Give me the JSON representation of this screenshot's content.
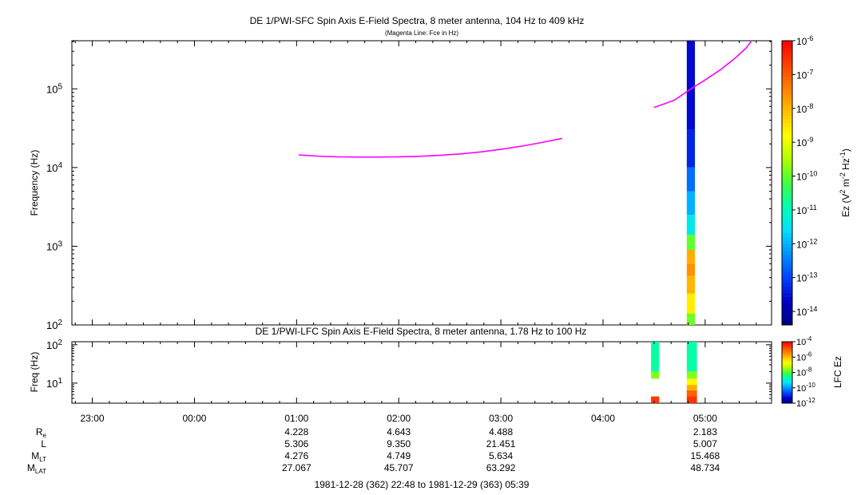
{
  "colors": {
    "fce_line": "#ff00ff",
    "colormap": [
      "#000080",
      "#0000c8",
      "#0040ff",
      "#0090ff",
      "#00e0ff",
      "#00ffb0",
      "#40ff40",
      "#b0ff00",
      "#ffff00",
      "#ffc000",
      "#ff8000",
      "#ff4000",
      "#ff0000"
    ]
  },
  "chart_data": [
    {
      "type": "heatmap",
      "title": "DE 1/PWI-SFC  Spin Axis E-Field Spectra, 8 meter antenna, 104 Hz to 409 kHz",
      "subtitle": "(Magenta Line: Fce in Hz)",
      "ylabel": "Frequency (Hz)",
      "yscale": "log",
      "ylim": [
        100,
        409000
      ],
      "yticks": [
        100,
        1000,
        10000,
        100000
      ],
      "ytick_labels": [
        {
          "base": "10",
          "exp": "2"
        },
        {
          "base": "10",
          "exp": "3"
        },
        {
          "base": "10",
          "exp": "4"
        },
        {
          "base": "10",
          "exp": "5"
        }
      ],
      "xlim_hours": [
        22.8,
        29.65
      ],
      "colorbar": {
        "label": "Ez (V2 m-2 Hz-1)",
        "label_parts": [
          {
            "t": "Ez (V",
            "sup": false
          },
          {
            "t": "2",
            "sup": true
          },
          {
            "t": " m",
            "sup": false
          },
          {
            "t": "-2",
            "sup": true
          },
          {
            "t": " Hz",
            "sup": false
          },
          {
            "t": "-1",
            "sup": true
          },
          {
            "t": ")",
            "sup": false
          }
        ],
        "log_range": [
          -14.4,
          -6
        ],
        "ticks": [
          {
            "base": "10",
            "exp": "-6",
            "v": -6
          },
          {
            "base": "10",
            "exp": "-7",
            "v": -7
          },
          {
            "base": "10",
            "exp": "-8",
            "v": -8
          },
          {
            "base": "10",
            "exp": "-9",
            "v": -9
          },
          {
            "base": "10",
            "exp": "-10",
            "v": -10
          },
          {
            "base": "10",
            "exp": "-11",
            "v": -11
          },
          {
            "base": "10",
            "exp": "-12",
            "v": -12
          },
          {
            "base": "10",
            "exp": "-13",
            "v": -13
          },
          {
            "base": "10",
            "exp": "-14",
            "v": -14
          }
        ]
      },
      "fce_line": {
        "segment_1": {
          "hours": [
            25.02,
            25.2,
            25.4,
            25.6,
            25.8,
            26.0,
            26.2,
            26.4,
            26.6,
            26.8,
            27.0,
            27.2,
            27.4,
            27.6
          ],
          "freq_hz": [
            14500,
            14000,
            13700,
            13600,
            13600,
            13700,
            13900,
            14300,
            14900,
            15800,
            17000,
            18700,
            20800,
            23500
          ]
        },
        "segment_2": {
          "hours": [
            28.5,
            28.7,
            28.85,
            29.0,
            29.15,
            29.3,
            29.4,
            29.45
          ],
          "freq_hz": [
            58000,
            72000,
            98000,
            130000,
            175000,
            250000,
            330000,
            400000
          ]
        }
      },
      "spectra": [
        {
          "hours_start": 28.82,
          "hours_end": 28.9,
          "bins": [
            {
              "f_lo": 100,
              "f_hi": 140,
              "log_ez": -9.9
            },
            {
              "f_lo": 140,
              "f_hi": 250,
              "log_ez": -8.6
            },
            {
              "f_lo": 250,
              "f_hi": 420,
              "log_ez": -8.0
            },
            {
              "f_lo": 420,
              "f_hi": 600,
              "log_ez": -7.6
            },
            {
              "f_lo": 600,
              "f_hi": 900,
              "log_ez": -7.9
            },
            {
              "f_lo": 900,
              "f_hi": 1400,
              "log_ez": -10.0
            },
            {
              "f_lo": 1400,
              "f_hi": 2500,
              "log_ez": -11.4
            },
            {
              "f_lo": 2500,
              "f_hi": 5000,
              "log_ez": -12.0
            },
            {
              "f_lo": 5000,
              "f_hi": 10000,
              "log_ez": -12.6
            },
            {
              "f_lo": 10000,
              "f_hi": 30000,
              "log_ez": -13.3
            },
            {
              "f_lo": 30000,
              "f_hi": 409000,
              "log_ez": -13.6
            }
          ]
        }
      ]
    },
    {
      "type": "heatmap",
      "title": "DE 1/PWI-LFC  Spin Axis E-Field Spectra, 8 meter antenna, 1.78 Hz to 100 Hz",
      "ylabel": "Freq (Hz)",
      "yscale": "log",
      "ylim": [
        3,
        120
      ],
      "yticks": [
        10,
        100
      ],
      "ytick_labels": [
        {
          "base": "10",
          "exp": "1"
        },
        {
          "base": "10",
          "exp": "2"
        }
      ],
      "colorbar": {
        "label": "LFC Ez",
        "log_range": [
          -12,
          -4
        ],
        "ticks": [
          {
            "base": "10",
            "exp": "-4",
            "v": -4
          },
          {
            "base": "10",
            "exp": "-6",
            "v": -6
          },
          {
            "base": "10",
            "exp": "-8",
            "v": -8
          },
          {
            "base": "10",
            "exp": "-10",
            "v": -10
          },
          {
            "base": "10",
            "exp": "-12",
            "v": -12
          }
        ]
      },
      "spectra": [
        {
          "hours_start": 28.47,
          "hours_end": 28.55,
          "bins": [
            {
              "f_lo": 3,
              "f_hi": 4.5,
              "log_ez": -4.6
            },
            {
              "f_lo": 13,
              "f_hi": 20,
              "log_ez": -7.6
            },
            {
              "f_lo": 20,
              "f_hi": 120,
              "log_ez": -8.6
            }
          ]
        },
        {
          "hours_start": 28.82,
          "hours_end": 28.92,
          "bins": [
            {
              "f_lo": 3,
              "f_hi": 4.5,
              "log_ez": -4.5
            },
            {
              "f_lo": 4.5,
              "f_hi": 6.5,
              "log_ez": -5.0
            },
            {
              "f_lo": 6.5,
              "f_hi": 9,
              "log_ez": -5.8
            },
            {
              "f_lo": 9,
              "f_hi": 13,
              "log_ez": -6.6
            },
            {
              "f_lo": 13,
              "f_hi": 20,
              "log_ez": -7.6
            },
            {
              "f_lo": 20,
              "f_hi": 120,
              "log_ez": -8.6
            }
          ]
        }
      ]
    }
  ],
  "time_axis": {
    "ticks": [
      {
        "h": 23,
        "label": "23:00"
      },
      {
        "h": 24,
        "label": "00:00"
      },
      {
        "h": 25,
        "label": "01:00"
      },
      {
        "h": 26,
        "label": "02:00"
      },
      {
        "h": 27,
        "label": "03:00"
      },
      {
        "h": 28,
        "label": "04:00"
      },
      {
        "h": 29,
        "label": "05:00"
      }
    ],
    "range_label": "1981-12-28 (362) 22:48 to 1981-12-29 (363) 05:39"
  },
  "ephemeris": {
    "rows": [
      {
        "base": "R",
        "sub": "e",
        "values": {
          "25": "4.228",
          "26": "4.643",
          "27": "4.488",
          "29": "2.183"
        }
      },
      {
        "base": "L",
        "sub": "",
        "values": {
          "25": "5.306",
          "26": "9.350",
          "27": "21.451",
          "29": "5.007"
        }
      },
      {
        "base": "M",
        "sub": "LT",
        "values": {
          "25": "4.276",
          "26": "4.749",
          "27": "5.634",
          "29": "15.468"
        }
      },
      {
        "base": "M",
        "sub": "LAT",
        "values": {
          "25": "27.067",
          "26": "45.707",
          "27": "63.292",
          "29": "48.734"
        }
      }
    ]
  }
}
